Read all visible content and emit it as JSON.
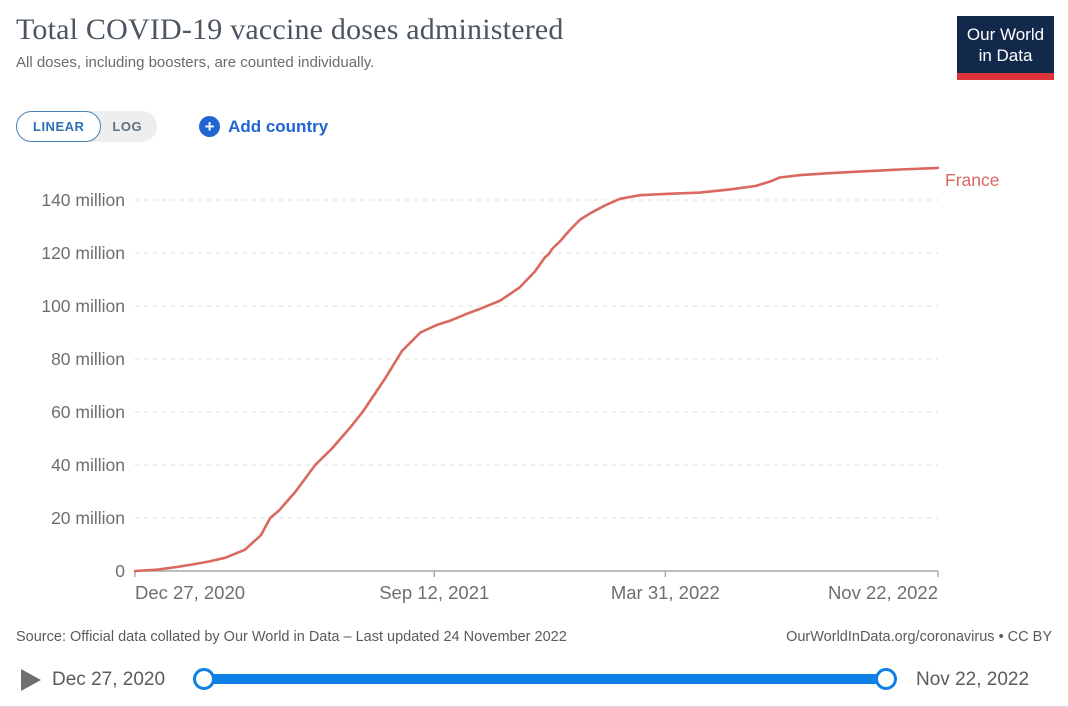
{
  "header": {
    "title": "Total COVID-19 vaccine doses administered",
    "subtitle": "All doses, including boosters, are counted individually.",
    "logo_line1": "Our World",
    "logo_line2": "in Data"
  },
  "controls": {
    "linear_label": "LINEAR",
    "log_label": "LOG",
    "plus_glyph": "+",
    "add_country_label": "Add country"
  },
  "chart_data": {
    "type": "line",
    "title": "Total COVID-19 vaccine doses administered",
    "grid": "dashed-horizontal",
    "legend_position": "end-of-line-label",
    "x_range": [
      "2020-12-27",
      "2022-11-22"
    ],
    "ylim_millions": [
      0,
      155
    ],
    "yticks": [
      {
        "value": 0,
        "label": "0"
      },
      {
        "value": 20,
        "label": "20 million"
      },
      {
        "value": 40,
        "label": "40 million"
      },
      {
        "value": 60,
        "label": "60 million"
      },
      {
        "value": 80,
        "label": "80 million"
      },
      {
        "value": 100,
        "label": "100 million"
      },
      {
        "value": 120,
        "label": "120 million"
      },
      {
        "value": 140,
        "label": "140 million"
      }
    ],
    "xticks": [
      {
        "date": "2020-12-27",
        "label": "Dec 27, 2020",
        "anchor": "start"
      },
      {
        "date": "2021-09-12",
        "label": "Sep 12, 2021",
        "anchor": "middle"
      },
      {
        "date": "2022-03-31",
        "label": "Mar 31, 2022",
        "anchor": "middle"
      },
      {
        "date": "2022-11-22",
        "label": "Nov 22, 2022",
        "anchor": "end"
      }
    ],
    "series": [
      {
        "name": "France",
        "color": "#d9695f",
        "unit": "doses (millions)",
        "points": [
          [
            "2020-12-27",
            0
          ],
          [
            "2021-01-15",
            0.5
          ],
          [
            "2021-02-01",
            1.5
          ],
          [
            "2021-02-15",
            2.5
          ],
          [
            "2021-03-01",
            3.6
          ],
          [
            "2021-03-15",
            5.0
          ],
          [
            "2021-04-01",
            8.0
          ],
          [
            "2021-04-15",
            13.5
          ],
          [
            "2021-04-23",
            20.0
          ],
          [
            "2021-05-01",
            23.0
          ],
          [
            "2021-05-15",
            30.0
          ],
          [
            "2021-06-01",
            40.0
          ],
          [
            "2021-06-15",
            46.0
          ],
          [
            "2021-07-01",
            54.0
          ],
          [
            "2021-07-12",
            60.0
          ],
          [
            "2021-08-01",
            73.0
          ],
          [
            "2021-08-15",
            83.0
          ],
          [
            "2021-08-31",
            90.0
          ],
          [
            "2021-09-15",
            93.0
          ],
          [
            "2021-09-26",
            94.5
          ],
          [
            "2021-10-10",
            97.0
          ],
          [
            "2021-10-22",
            99.0
          ],
          [
            "2021-11-08",
            102.0
          ],
          [
            "2021-11-25",
            107.0
          ],
          [
            "2021-12-08",
            113.0
          ],
          [
            "2021-12-17",
            118.5
          ],
          [
            "2021-12-20",
            119.5
          ],
          [
            "2021-12-23",
            121.5
          ],
          [
            "2021-12-30",
            124.5
          ],
          [
            "2022-01-07",
            128.5
          ],
          [
            "2022-01-16",
            132.5
          ],
          [
            "2022-01-25",
            135.0
          ],
          [
            "2022-02-07",
            138.0
          ],
          [
            "2022-02-20",
            140.5
          ],
          [
            "2022-03-09",
            141.8
          ],
          [
            "2022-03-31",
            142.3
          ],
          [
            "2022-04-30",
            142.8
          ],
          [
            "2022-05-26",
            144.0
          ],
          [
            "2022-06-17",
            145.3
          ],
          [
            "2022-06-30",
            147.0
          ],
          [
            "2022-07-08",
            148.5
          ],
          [
            "2022-07-26",
            149.4
          ],
          [
            "2022-08-20",
            150.1
          ],
          [
            "2022-09-15",
            150.7
          ],
          [
            "2022-10-20",
            151.5
          ],
          [
            "2022-11-22",
            152.1
          ]
        ]
      }
    ]
  },
  "footer": {
    "source": "Source: Official data collated by Our World in Data – Last updated 24 November 2022",
    "link": "OurWorldInData.org/coronavirus • CC BY"
  },
  "timeline": {
    "start_label": "Dec 27, 2020",
    "end_label": "Nov 22, 2022"
  },
  "colors": {
    "line": "#d9695f",
    "slider_blue": "#0e80e6",
    "control_blue": "#2065d1",
    "logo_navy": "#12294b",
    "logo_red": "#e0343c",
    "gridline": "#dcdcdc",
    "axis": "#a8a8a8",
    "tick_text": "#6e6e6e"
  }
}
